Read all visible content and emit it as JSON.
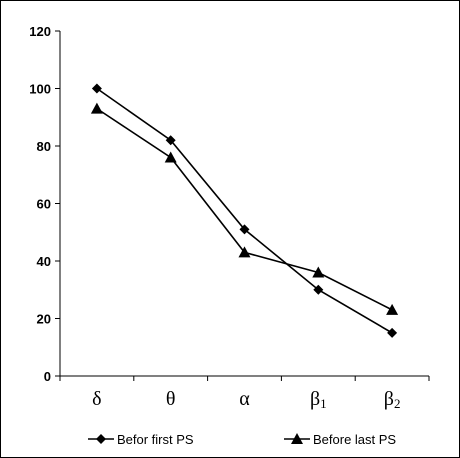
{
  "chart_data": {
    "type": "line",
    "categories": [
      {
        "base": "δ",
        "sub": ""
      },
      {
        "base": "θ",
        "sub": ""
      },
      {
        "base": "α",
        "sub": ""
      },
      {
        "base": "β",
        "sub": "1"
      },
      {
        "base": "β",
        "sub": "2"
      }
    ],
    "series": [
      {
        "name": "Befor first PS",
        "marker": "diamond",
        "values": [
          100,
          82,
          51,
          30,
          15
        ]
      },
      {
        "name": "Before last PS",
        "marker": "triangle",
        "values": [
          93,
          76,
          43,
          36,
          23
        ]
      }
    ],
    "ylim": [
      0,
      120
    ],
    "yticks": [
      0,
      20,
      40,
      60,
      80,
      100,
      120
    ],
    "grid": false,
    "legend_position": "bottom",
    "line_color": "#000000"
  }
}
